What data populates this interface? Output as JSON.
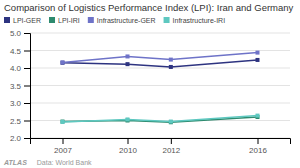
{
  "chart_data": {
    "type": "line",
    "title": "Comparison of Logistics Performance Index (LPI): Iran and Germany",
    "x": [
      2007,
      2010,
      2012,
      2016
    ],
    "series": [
      {
        "name": "LPI-GER",
        "color": "#2d3380",
        "values": [
          4.15,
          4.11,
          4.03,
          4.23
        ]
      },
      {
        "name": "LPI-IRI",
        "color": "#2d8a6e",
        "values": [
          2.47,
          2.5,
          2.45,
          2.6
        ]
      },
      {
        "name": "Infrastructure-GER",
        "color": "#6e73c8",
        "values": [
          4.16,
          4.33,
          4.24,
          4.44
        ]
      },
      {
        "name": "Infrastructure-IRI",
        "color": "#5ec8c0",
        "values": [
          2.46,
          2.53,
          2.47,
          2.64
        ]
      }
    ],
    "xlim": [
      2005.5,
      2017.5
    ],
    "xticks": [
      2007,
      2010,
      2012,
      2016
    ],
    "ylim": [
      2.0,
      5.0
    ],
    "yticks": [
      {
        "value": 2,
        "label": "2.0"
      },
      2.5,
      {
        "value": 3,
        "label": "3.0"
      },
      3.5,
      {
        "value": 4,
        "label": "4.0"
      },
      4.5,
      {
        "value": 5,
        "label": "5.0"
      }
    ],
    "grid": true,
    "legend": "top-left",
    "marker": "square",
    "annotations": [
      "ATLAS",
      "Data: World Bank"
    ]
  }
}
